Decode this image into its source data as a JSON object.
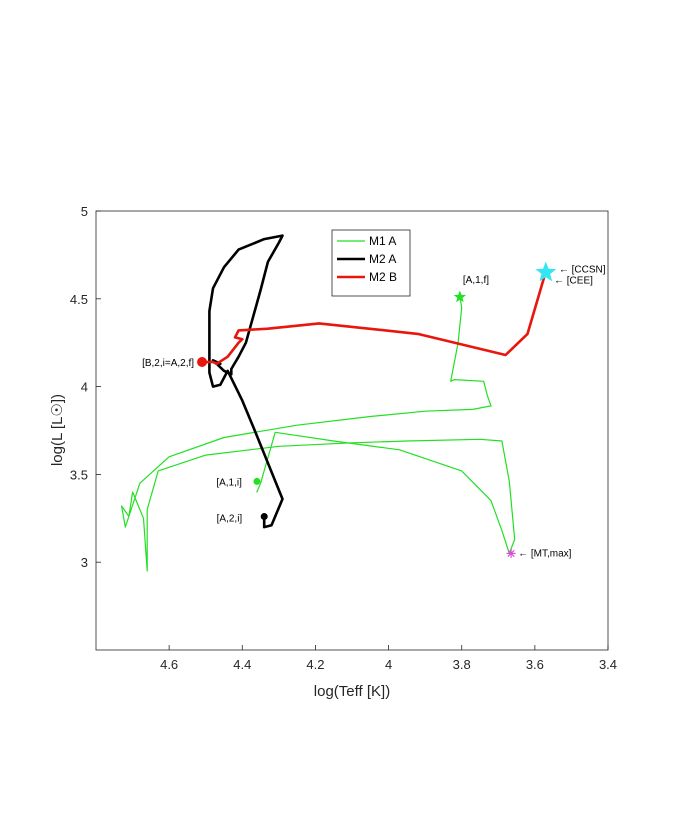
{
  "chart_data": {
    "type": "line",
    "xlabel": "log(Teff [K])",
    "ylabel": "log(L [L☉])",
    "xlim": [
      4.8,
      3.4
    ],
    "ylim": [
      2.5,
      5.0
    ],
    "x_reversed": true,
    "xticks": [
      4.6,
      4.4,
      4.2,
      4.0,
      3.8,
      3.6,
      3.4
    ],
    "xtick_labels": [
      "4.6",
      "4.4",
      "4.2",
      "4",
      "3.8",
      "3.6",
      "3.4"
    ],
    "yticks": [
      3.0,
      3.5,
      4.0,
      4.5,
      5.0
    ],
    "ytick_labels": [
      "3",
      "3.5",
      "4",
      "4.5",
      "5"
    ],
    "grid": false,
    "legend_position": "top-center",
    "series": [
      {
        "name": "M1 A",
        "color": "#22e022",
        "width": 1.2,
        "points": [
          [
            4.36,
            3.4
          ],
          [
            4.35,
            3.45
          ],
          [
            4.31,
            3.74
          ],
          [
            4.15,
            3.69
          ],
          [
            3.97,
            3.64
          ],
          [
            3.8,
            3.52
          ],
          [
            3.72,
            3.35
          ],
          [
            3.69,
            3.18
          ],
          [
            3.67,
            3.05
          ],
          [
            3.655,
            3.13
          ],
          [
            3.67,
            3.46
          ],
          [
            3.69,
            3.69
          ],
          [
            3.75,
            3.7
          ],
          [
            3.95,
            3.69
          ],
          [
            4.1,
            3.68
          ],
          [
            4.3,
            3.66
          ],
          [
            4.5,
            3.61
          ],
          [
            4.63,
            3.52
          ],
          [
            4.66,
            3.3
          ],
          [
            4.66,
            2.95
          ],
          [
            4.67,
            3.25
          ],
          [
            4.7,
            3.4
          ],
          [
            4.71,
            3.26
          ],
          [
            4.73,
            3.32
          ],
          [
            4.72,
            3.2
          ],
          [
            4.68,
            3.45
          ],
          [
            4.6,
            3.6
          ],
          [
            4.45,
            3.71
          ],
          [
            4.25,
            3.78
          ],
          [
            4.05,
            3.83
          ],
          [
            3.9,
            3.86
          ],
          [
            3.77,
            3.87
          ],
          [
            3.72,
            3.89
          ],
          [
            3.73,
            3.95
          ],
          [
            3.74,
            4.03
          ],
          [
            3.82,
            4.04
          ],
          [
            3.83,
            4.03
          ],
          [
            3.81,
            4.25
          ],
          [
            3.8,
            4.45
          ],
          [
            3.805,
            4.51
          ]
        ]
      },
      {
        "name": "M2 A",
        "color": "#000000",
        "width": 2.6,
        "points": [
          [
            4.34,
            3.26
          ],
          [
            4.34,
            3.2
          ],
          [
            4.32,
            3.21
          ],
          [
            4.29,
            3.36
          ],
          [
            4.37,
            3.77
          ],
          [
            4.4,
            3.92
          ],
          [
            4.44,
            4.09
          ],
          [
            4.46,
            4.01
          ],
          [
            4.48,
            4.0
          ],
          [
            4.49,
            4.08
          ],
          [
            4.49,
            4.43
          ],
          [
            4.48,
            4.56
          ],
          [
            4.45,
            4.68
          ],
          [
            4.41,
            4.78
          ],
          [
            4.34,
            4.84
          ],
          [
            4.29,
            4.86
          ],
          [
            4.3,
            4.82
          ],
          [
            4.33,
            4.71
          ],
          [
            4.35,
            4.55
          ],
          [
            4.39,
            4.25
          ],
          [
            4.41,
            4.17
          ],
          [
            4.43,
            4.1
          ],
          [
            4.43,
            4.07
          ],
          [
            4.45,
            4.09
          ],
          [
            4.48,
            4.15
          ],
          [
            4.47,
            4.14
          ],
          [
            4.46,
            4.13
          ]
        ]
      },
      {
        "name": "M2 B",
        "color": "#e8160c",
        "width": 2.6,
        "points": [
          [
            4.51,
            4.14
          ],
          [
            4.48,
            4.14
          ],
          [
            4.47,
            4.13
          ],
          [
            4.44,
            4.17
          ],
          [
            4.41,
            4.25
          ],
          [
            4.4,
            4.27
          ],
          [
            4.42,
            4.28
          ],
          [
            4.41,
            4.32
          ],
          [
            4.33,
            4.33
          ],
          [
            4.19,
            4.36
          ],
          [
            3.92,
            4.3
          ],
          [
            3.68,
            4.18
          ],
          [
            3.62,
            4.3
          ],
          [
            3.575,
            4.62
          ]
        ]
      }
    ],
    "markers": [
      {
        "label": "[A,1,f]",
        "x": 3.805,
        "y": 4.51,
        "shape": "star",
        "color": "#22e022"
      },
      {
        "label": "[A,1,i]",
        "x": 4.36,
        "y": 3.46,
        "shape": "dot",
        "color": "#22e022"
      },
      {
        "label": "[A,2,i]",
        "x": 4.34,
        "y": 3.26,
        "shape": "dot",
        "color": "#000000"
      },
      {
        "label": "[B,2,i=A,2,f]",
        "x": 4.51,
        "y": 4.14,
        "shape": "dot",
        "color": "#e8160c"
      },
      {
        "label": "[MT,max]",
        "x": 3.665,
        "y": 3.05,
        "shape": "asterisk",
        "color": "#d94bd9"
      },
      {
        "label": "[CCSN]",
        "x": 3.57,
        "y": 4.65,
        "shape": "star",
        "color": "#33e6f2"
      },
      {
        "label": "[CEE]",
        "x": 3.575,
        "y": 4.61,
        "shape": "none",
        "color": "#000000"
      }
    ],
    "arrow_glyph": "←"
  }
}
